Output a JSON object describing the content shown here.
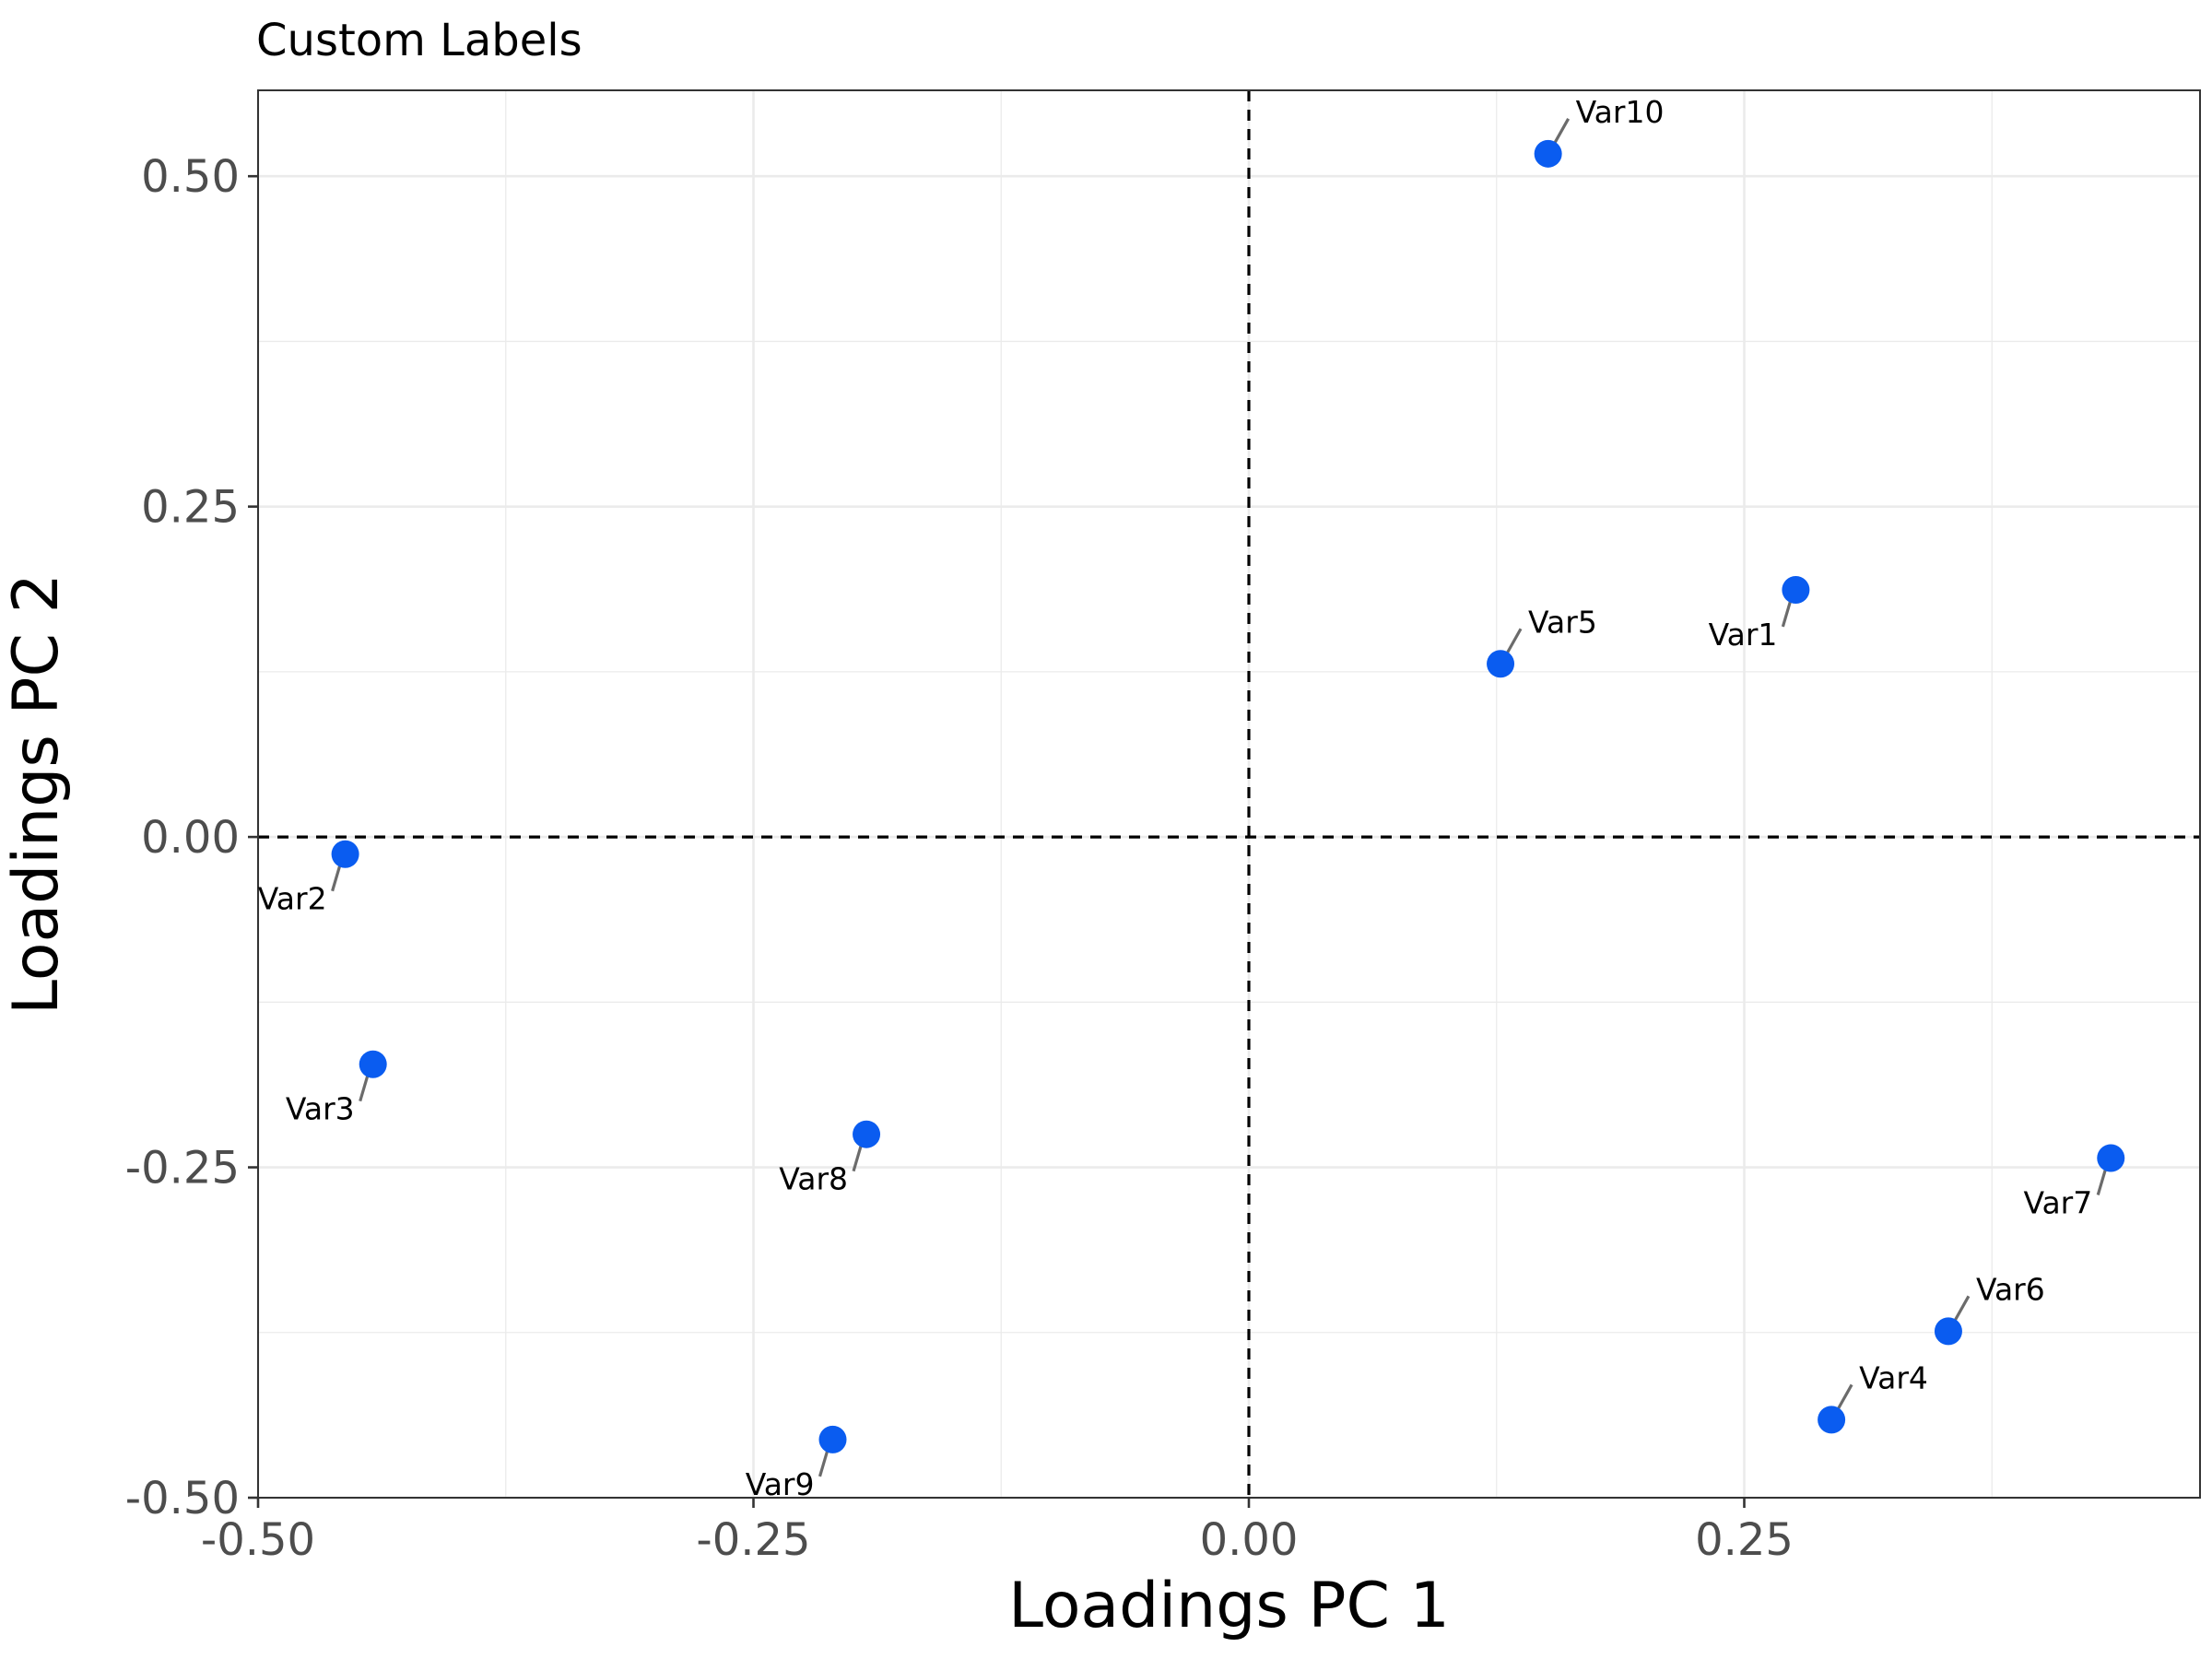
{
  "chart_data": {
    "type": "scatter",
    "title": "Custom Labels",
    "xlabel": "Loadings PC 1",
    "ylabel": "Loadings PC 2",
    "xlim": [
      -0.5,
      0.48
    ],
    "ylim": [
      -0.5,
      0.565
    ],
    "xticks": [
      -0.5,
      -0.25,
      0.0,
      0.25
    ],
    "xtick_labels": [
      "-0.50",
      "-0.25",
      "0.00",
      "0.25"
    ],
    "yticks": [
      -0.5,
      -0.25,
      0.0,
      0.25,
      0.5
    ],
    "ytick_labels": [
      "-0.50",
      "-0.25",
      "0.00",
      "0.25",
      "0.50"
    ],
    "grid": true,
    "reference_lines": {
      "x": 0,
      "y": 0,
      "style": "dashed"
    },
    "point_color": "#0a5cf0",
    "points": [
      {
        "label": "Var1",
        "x": 0.276,
        "y": 0.187,
        "label_pos": "left-below"
      },
      {
        "label": "Var2",
        "x": -0.456,
        "y": -0.013,
        "label_pos": "left-below"
      },
      {
        "label": "Var3",
        "x": -0.442,
        "y": -0.172,
        "label_pos": "left-below"
      },
      {
        "label": "Var4",
        "x": 0.294,
        "y": -0.441,
        "label_pos": "right-above"
      },
      {
        "label": "Var5",
        "x": 0.127,
        "y": 0.131,
        "label_pos": "right-above"
      },
      {
        "label": "Var6",
        "x": 0.353,
        "y": -0.374,
        "label_pos": "right-above"
      },
      {
        "label": "Var7",
        "x": 0.435,
        "y": -0.243,
        "label_pos": "left-below"
      },
      {
        "label": "Var8",
        "x": -0.193,
        "y": -0.225,
        "label_pos": "left-below"
      },
      {
        "label": "Var9",
        "x": -0.21,
        "y": -0.456,
        "label_pos": "left-below"
      },
      {
        "label": "Var10",
        "x": 0.151,
        "y": 0.517,
        "label_pos": "right-above"
      }
    ]
  }
}
